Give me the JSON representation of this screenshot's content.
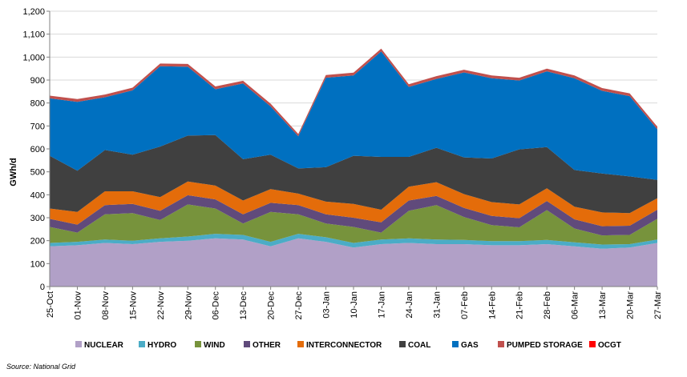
{
  "chart_data": {
    "type": "area",
    "stacked": true,
    "ylabel": "GWh/d",
    "ylim": [
      0,
      1200
    ],
    "yticks": [
      0,
      100,
      200,
      300,
      400,
      500,
      600,
      700,
      800,
      900,
      1000,
      1100,
      1200
    ],
    "ytick_labels": [
      "0",
      "100",
      "200",
      "300",
      "400",
      "500",
      "600",
      "700",
      "800",
      "900",
      "1,000",
      "1,100",
      "1,200"
    ],
    "x_start": "2013-10-25",
    "x_end": "2014-03-27",
    "xtick_labels": [
      "25-Oct",
      "01-Nov",
      "08-Nov",
      "15-Nov",
      "22-Nov",
      "29-Nov",
      "06-Dec",
      "13-Dec",
      "20-Dec",
      "27-Dec",
      "03-Jan",
      "10-Jan",
      "17-Jan",
      "24-Jan",
      "31-Jan",
      "07-Feb",
      "14-Feb",
      "21-Feb",
      "28-Feb",
      "06-Mar",
      "13-Mar",
      "20-Mar",
      "27-Mar"
    ],
    "legend_position": "bottom",
    "grid": "horizontal",
    "source": "Source: National Grid",
    "x": [
      "25-Oct",
      "01-Nov",
      "08-Nov",
      "15-Nov",
      "22-Nov",
      "29-Nov",
      "06-Dec",
      "13-Dec",
      "20-Dec",
      "27-Dec",
      "03-Jan",
      "10-Jan",
      "17-Jan",
      "24-Jan",
      "31-Jan",
      "07-Feb",
      "14-Feb",
      "21-Feb",
      "28-Feb",
      "06-Mar",
      "13-Mar",
      "20-Mar",
      "27-Mar"
    ],
    "series": [
      {
        "name": "NUCLEAR",
        "color": "#b1a0c7",
        "values": [
          175,
          180,
          190,
          185,
          195,
          200,
          210,
          205,
          175,
          210,
          195,
          170,
          185,
          190,
          185,
          185,
          180,
          180,
          185,
          175,
          165,
          170,
          190
        ]
      },
      {
        "name": "HYDRO",
        "color": "#4bacc6",
        "values": [
          15,
          15,
          15,
          15,
          15,
          18,
          20,
          20,
          20,
          20,
          20,
          20,
          20,
          20,
          20,
          18,
          18,
          18,
          18,
          18,
          18,
          15,
          15
        ]
      },
      {
        "name": "WIND",
        "color": "#77933c",
        "values": [
          70,
          40,
          110,
          120,
          80,
          140,
          110,
          50,
          130,
          85,
          60,
          70,
          30,
          120,
          150,
          100,
          70,
          60,
          130,
          60,
          40,
          40,
          90
        ]
      },
      {
        "name": "OTHER",
        "color": "#604a7b",
        "values": [
          35,
          35,
          40,
          40,
          40,
          40,
          40,
          40,
          40,
          40,
          40,
          40,
          45,
          45,
          40,
          40,
          40,
          40,
          40,
          40,
          40,
          40,
          40
        ]
      },
      {
        "name": "INTERCONNECTOR",
        "color": "#e46c0a",
        "values": [
          45,
          55,
          60,
          55,
          60,
          60,
          60,
          60,
          60,
          50,
          55,
          60,
          55,
          60,
          60,
          60,
          60,
          60,
          55,
          55,
          60,
          55,
          50
        ]
      },
      {
        "name": "COAL",
        "color": "#404040",
        "values": [
          230,
          180,
          180,
          160,
          220,
          200,
          220,
          180,
          150,
          110,
          150,
          210,
          230,
          130,
          150,
          160,
          190,
          240,
          180,
          160,
          170,
          160,
          80
        ]
      },
      {
        "name": "GAS",
        "color": "#0070c0",
        "values": [
          250,
          300,
          230,
          280,
          350,
          300,
          200,
          330,
          210,
          140,
          390,
          350,
          460,
          305,
          300,
          370,
          350,
          300,
          330,
          400,
          360,
          350,
          220
        ]
      },
      {
        "name": "PUMPED STORAGE",
        "color": "#c0504d",
        "values": [
          12,
          12,
          12,
          12,
          12,
          12,
          12,
          12,
          12,
          10,
          12,
          12,
          12,
          12,
          12,
          12,
          12,
          12,
          12,
          12,
          12,
          12,
          12
        ]
      },
      {
        "name": "OCGT",
        "color": "#ff0000",
        "values": [
          0,
          0,
          0,
          0,
          0,
          0,
          0,
          0,
          0,
          0,
          0,
          0,
          0,
          0,
          0,
          0,
          0,
          0,
          0,
          0,
          0,
          0,
          0
        ]
      }
    ]
  }
}
